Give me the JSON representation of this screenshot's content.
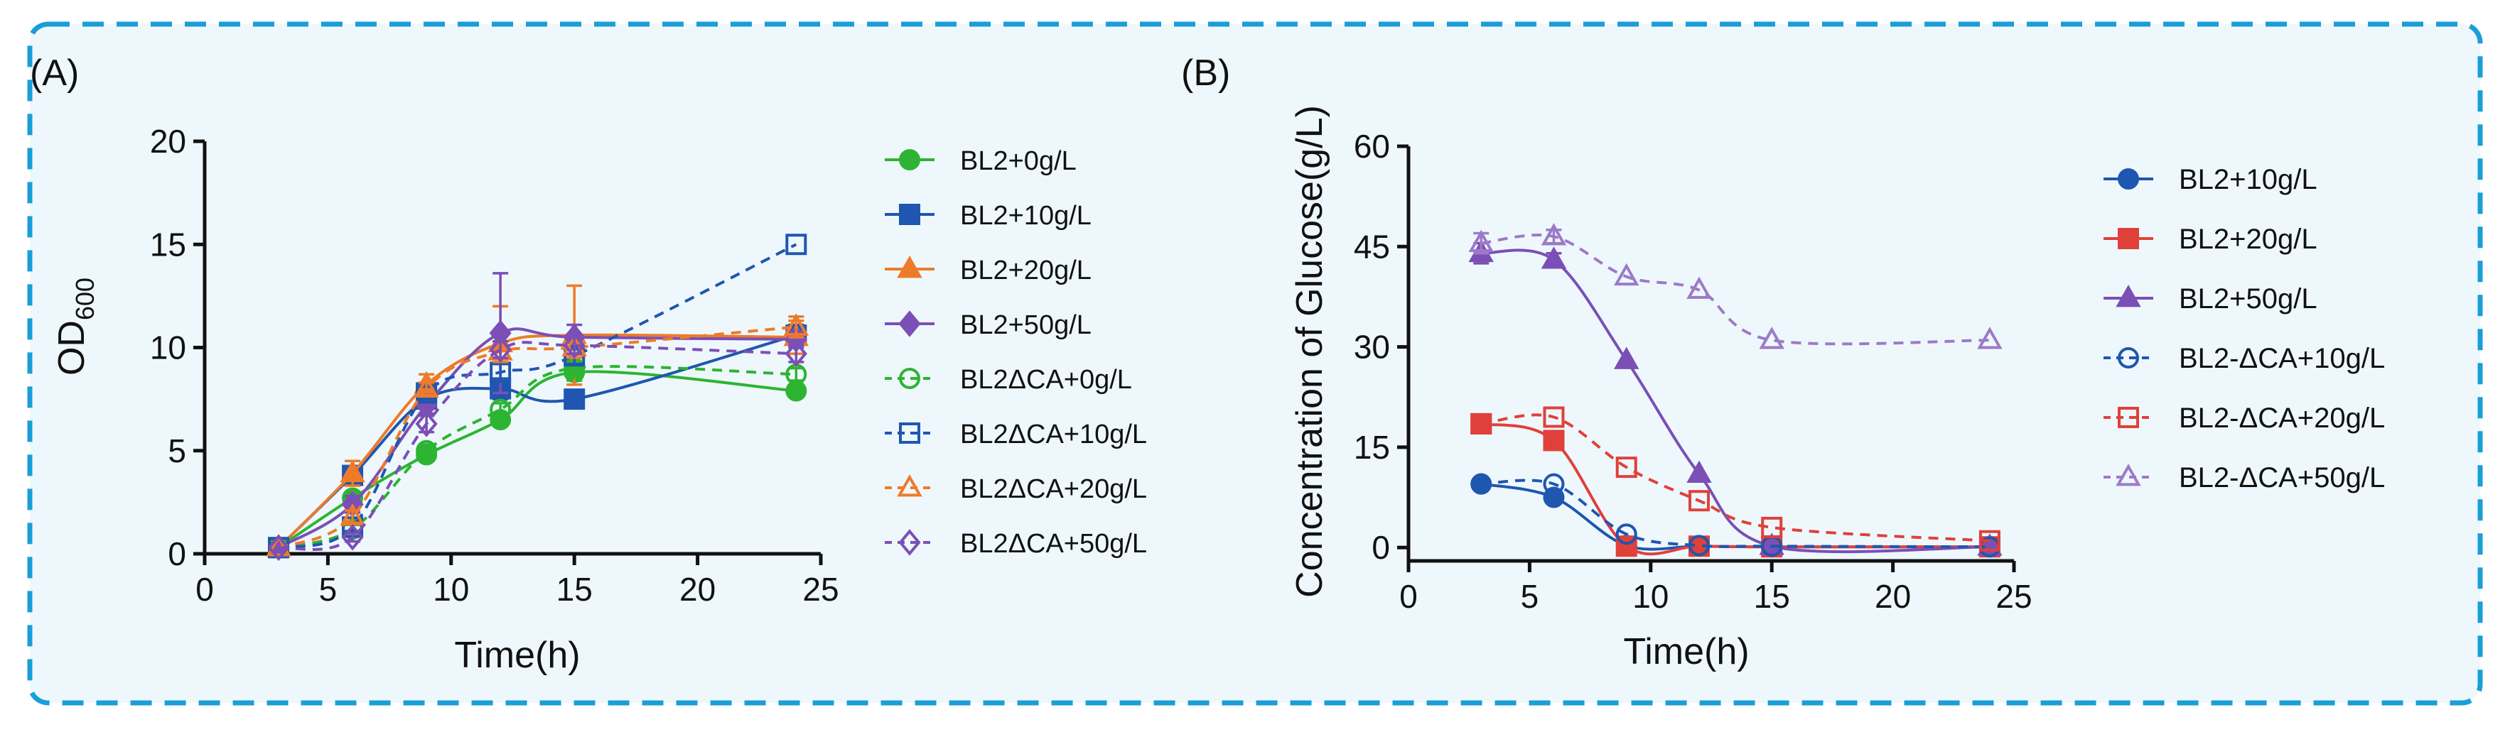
{
  "colors": {
    "frame_border": "#1a9ed8",
    "frame_fill": "#eef8fc",
    "green": "#2db432",
    "blue": "#1f56b0",
    "orange": "#ee7a2a",
    "purple": "#7b4fb6",
    "glc_blue": "#1f56b0",
    "glc_red": "#e0403a",
    "glc_purple": "#7b4fb6",
    "glc_lavender": "#9d7ac8"
  },
  "chart_data": [
    {
      "panel_label": "(A)",
      "type": "line",
      "title": "",
      "xlabel": "Time(h)",
      "ylabel_main": "OD",
      "ylabel_sub": "600",
      "xlim": [
        0,
        25
      ],
      "ylim": [
        0,
        20
      ],
      "xticks": [
        0,
        5,
        10,
        15,
        20,
        25
      ],
      "yticks": [
        0,
        5,
        10,
        15,
        20
      ],
      "legend_position": "right",
      "series": [
        {
          "name": "BL2+0g/L",
          "color": "green",
          "marker": "circle",
          "filled": true,
          "dashed": false,
          "x": [
            3,
            6,
            9,
            12,
            15,
            24
          ],
          "y": [
            0.3,
            2.7,
            4.8,
            6.5,
            8.8,
            7.9
          ],
          "err": [
            0,
            0.3,
            0.3,
            0.3,
            0.4,
            0.3
          ]
        },
        {
          "name": "BL2+10g/L",
          "color": "blue",
          "marker": "square",
          "filled": true,
          "dashed": false,
          "x": [
            3,
            6,
            9,
            12,
            15,
            24
          ],
          "y": [
            0.3,
            3.8,
            7.5,
            8.0,
            7.5,
            10.6
          ],
          "err": [
            0,
            0.4,
            0.4,
            0.5,
            0.3,
            0.5
          ]
        },
        {
          "name": "BL2+20g/L",
          "color": "orange",
          "marker": "triangle",
          "filled": true,
          "dashed": false,
          "x": [
            3,
            6,
            9,
            12,
            15,
            24
          ],
          "y": [
            0.3,
            3.9,
            8.2,
            10.2,
            10.6,
            10.5
          ],
          "err": [
            0,
            0.6,
            0.5,
            1.8,
            2.4,
            0.8
          ]
        },
        {
          "name": "BL2+50g/L",
          "color": "purple",
          "marker": "diamond",
          "filled": true,
          "dashed": false,
          "x": [
            3,
            6,
            9,
            12,
            15,
            24
          ],
          "y": [
            0.3,
            2.4,
            7.2,
            10.7,
            10.5,
            10.4
          ],
          "err": [
            0,
            0.4,
            0.4,
            2.9,
            0.6,
            0.4
          ]
        },
        {
          "name": "BL2ΔCA+0g/L",
          "color": "green",
          "marker": "circle",
          "filled": false,
          "dashed": true,
          "x": [
            3,
            6,
            9,
            12,
            15,
            24
          ],
          "y": [
            0.3,
            1.2,
            5.0,
            7.0,
            9.0,
            8.7
          ],
          "err": [
            0,
            0.2,
            0.3,
            0.3,
            0.3,
            0.3
          ]
        },
        {
          "name": "BL2ΔCA+10g/L",
          "color": "blue",
          "marker": "square",
          "filled": false,
          "dashed": true,
          "x": [
            3,
            6,
            9,
            12,
            15,
            24
          ],
          "y": [
            0.3,
            1.3,
            7.8,
            8.8,
            9.6,
            15.0
          ],
          "err": [
            0,
            0.2,
            0.3,
            0.4,
            0.4,
            0
          ]
        },
        {
          "name": "BL2ΔCA+20g/L",
          "color": "orange",
          "marker": "triangle",
          "filled": false,
          "dashed": true,
          "x": [
            3,
            6,
            9,
            12,
            15,
            24
          ],
          "y": [
            0.3,
            1.8,
            8.0,
            9.8,
            10.0,
            11.0
          ],
          "err": [
            0,
            0.3,
            0.3,
            0.5,
            0.5,
            0.5
          ]
        },
        {
          "name": "BL2ΔCA+50g/L",
          "color": "purple",
          "marker": "diamond",
          "filled": false,
          "dashed": true,
          "x": [
            3,
            6,
            9,
            12,
            15,
            24
          ],
          "y": [
            0.3,
            0.8,
            6.3,
            9.9,
            10.1,
            9.7
          ],
          "err": [
            0,
            0.2,
            0.4,
            0.4,
            0.4,
            0.4
          ]
        }
      ]
    },
    {
      "panel_label": "(B)",
      "type": "line",
      "title": "",
      "xlabel": "Time(h)",
      "ylabel_main": "Concentration of Glucose(g/L)",
      "ylabel_sub": "",
      "xlim": [
        0,
        25
      ],
      "ylim": [
        -2,
        60
      ],
      "xticks": [
        0,
        5,
        10,
        15,
        20,
        25
      ],
      "yticks": [
        0,
        15,
        30,
        45,
        60
      ],
      "legend_position": "right",
      "series": [
        {
          "name": "BL2+10g/L",
          "color": "glc_blue",
          "marker": "circle",
          "filled": true,
          "dashed": false,
          "x": [
            3,
            6,
            9,
            12,
            15,
            24
          ],
          "y": [
            9.5,
            7.5,
            0.3,
            0.2,
            0.1,
            0.1
          ],
          "err": [
            0,
            0,
            0,
            0,
            0,
            0
          ]
        },
        {
          "name": "BL2+20g/L",
          "color": "glc_red",
          "marker": "square",
          "filled": true,
          "dashed": false,
          "x": [
            3,
            6,
            9,
            12,
            15,
            24
          ],
          "y": [
            18.5,
            16.0,
            0.2,
            0.2,
            0.1,
            0.1
          ],
          "err": [
            0,
            0,
            0,
            0,
            0,
            0
          ]
        },
        {
          "name": "BL2+50g/L",
          "color": "glc_purple",
          "marker": "triangle",
          "filled": true,
          "dashed": false,
          "x": [
            3,
            6,
            9,
            12,
            15,
            24
          ],
          "y": [
            44.0,
            43.0,
            28.0,
            11.0,
            0.2,
            0.1
          ],
          "err": [
            1.5,
            1.0,
            0,
            0,
            0,
            0
          ]
        },
        {
          "name": "BL2-ΔCA+10g/L",
          "color": "glc_blue",
          "marker": "circle",
          "filled": false,
          "dashed": true,
          "x": [
            3,
            6,
            9,
            12,
            15,
            24
          ],
          "y": [
            9.5,
            9.5,
            2.0,
            0.3,
            0.2,
            0.1
          ],
          "err": [
            0,
            0,
            0,
            0,
            0,
            0
          ]
        },
        {
          "name": "BL2-ΔCA+20g/L",
          "color": "glc_red",
          "marker": "square",
          "filled": false,
          "dashed": true,
          "x": [
            3,
            6,
            9,
            12,
            15,
            24
          ],
          "y": [
            18.5,
            19.5,
            12.0,
            7.0,
            3.0,
            1.0
          ],
          "err": [
            0,
            0,
            0,
            0,
            0,
            0
          ]
        },
        {
          "name": "BL2-ΔCA+50g/L",
          "color": "glc_lavender",
          "marker": "triangle",
          "filled": false,
          "dashed": true,
          "x": [
            3,
            6,
            9,
            12,
            15,
            24
          ],
          "y": [
            45.5,
            46.5,
            40.5,
            38.5,
            31.0,
            31.0
          ],
          "err": [
            1.5,
            1.0,
            0,
            0,
            0,
            0
          ]
        }
      ]
    }
  ]
}
